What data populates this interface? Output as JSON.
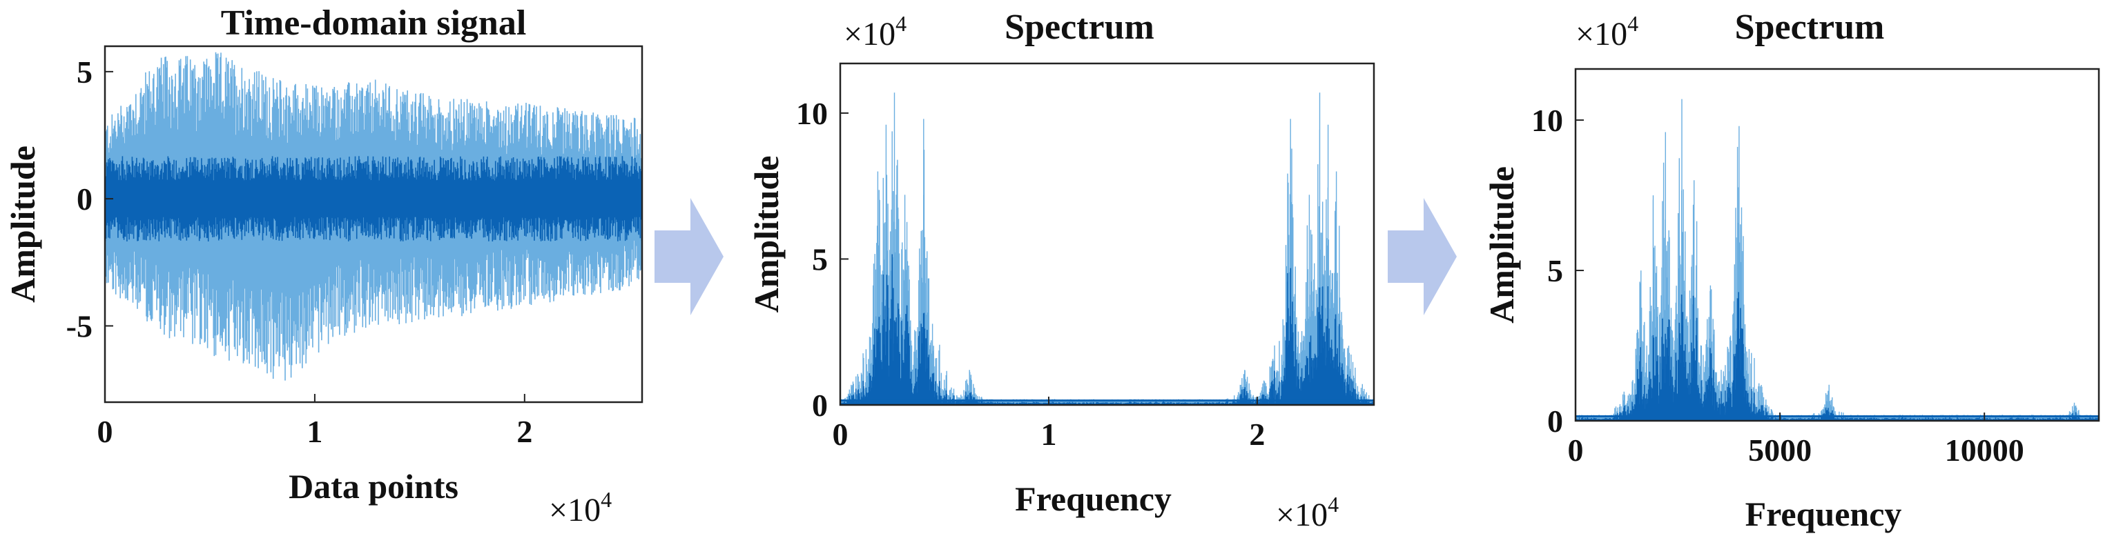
{
  "colors": {
    "signal_light": "#6aaee0",
    "signal_dark": "#0b63b5",
    "arrow": "#b8c8ec"
  },
  "chart_data": [
    {
      "type": "line",
      "title": "Time-domain signal",
      "xlabel": "Data points",
      "ylabel": "Amplitude",
      "x_multiplier": "×10",
      "x_multiplier_exp": "4",
      "xlim": [
        0,
        25600
      ],
      "ylim": [
        -8,
        6
      ],
      "xticks": [
        {
          "value": 0,
          "label": "0"
        },
        {
          "value": 10000,
          "label": "1"
        },
        {
          "value": 20000,
          "label": "2"
        }
      ],
      "yticks": [
        {
          "value": -5,
          "label": "-5"
        },
        {
          "value": 0,
          "label": "0"
        },
        {
          "value": 5,
          "label": "5"
        }
      ],
      "envelope_outer": [
        [
          0,
          3.0
        ],
        [
          2500,
          5.6
        ],
        [
          5500,
          5.8
        ],
        [
          8000,
          4.8
        ],
        [
          10000,
          4.5
        ],
        [
          13000,
          4.7
        ],
        [
          16000,
          4.0
        ],
        [
          20000,
          3.8
        ],
        [
          25600,
          3.2
        ]
      ],
      "envelope_outer_neg": [
        [
          0,
          -3.5
        ],
        [
          3000,
          -5.5
        ],
        [
          5500,
          -6.3
        ],
        [
          8600,
          -7.4
        ],
        [
          11000,
          -5.5
        ],
        [
          14000,
          -5.0
        ],
        [
          18000,
          -4.5
        ],
        [
          22000,
          -4.0
        ],
        [
          25600,
          -3.5
        ]
      ],
      "envelope_inner": 1.2
    },
    {
      "type": "line",
      "title": "Spectrum",
      "xlabel": "Frequency",
      "ylabel": "Amplitude",
      "x_multiplier": "×10",
      "x_multiplier_exp": "4",
      "y_multiplier": "×10",
      "y_multiplier_exp": "4",
      "xlim": [
        0,
        25600
      ],
      "ylim": [
        0,
        11.7
      ],
      "xticks": [
        {
          "value": 0,
          "label": "0"
        },
        {
          "value": 10000,
          "label": "1"
        },
        {
          "value": 20000,
          "label": "2"
        }
      ],
      "yticks": [
        {
          "value": 0,
          "label": "0"
        },
        {
          "value": 5,
          "label": "5"
        },
        {
          "value": 10,
          "label": "10"
        }
      ],
      "peaks": [
        [
          1800,
          8.0
        ],
        [
          2200,
          9.6
        ],
        [
          2600,
          10.7
        ],
        [
          3100,
          7.2
        ],
        [
          4000,
          9.8
        ],
        [
          4100,
          3.4
        ],
        [
          6200,
          1.2
        ],
        [
          19400,
          1.2
        ],
        [
          21500,
          3.4
        ],
        [
          21600,
          9.8
        ],
        [
          22500,
          7.2
        ],
        [
          23000,
          10.7
        ],
        [
          23400,
          9.6
        ],
        [
          23800,
          8.0
        ]
      ]
    },
    {
      "type": "line",
      "title": "Spectrum",
      "xlabel": "Frequency",
      "ylabel": "Amplitude",
      "y_multiplier": "×10",
      "y_multiplier_exp": "4",
      "xlim": [
        0,
        12800
      ],
      "ylim": [
        0,
        11.7
      ],
      "xticks": [
        {
          "value": 0,
          "label": "0"
        },
        {
          "value": 5000,
          "label": "5000"
        },
        {
          "value": 10000,
          "label": "10000"
        }
      ],
      "yticks": [
        {
          "value": 0,
          "label": "0"
        },
        {
          "value": 5,
          "label": "5"
        },
        {
          "value": 10,
          "label": "10"
        }
      ],
      "peaks": [
        [
          1600,
          5.0
        ],
        [
          1900,
          7.5
        ],
        [
          2200,
          9.6
        ],
        [
          2600,
          10.7
        ],
        [
          2900,
          8.0
        ],
        [
          3300,
          4.5
        ],
        [
          4000,
          9.8
        ],
        [
          4100,
          3.4
        ],
        [
          6200,
          1.2
        ],
        [
          12200,
          0.6
        ]
      ]
    }
  ]
}
